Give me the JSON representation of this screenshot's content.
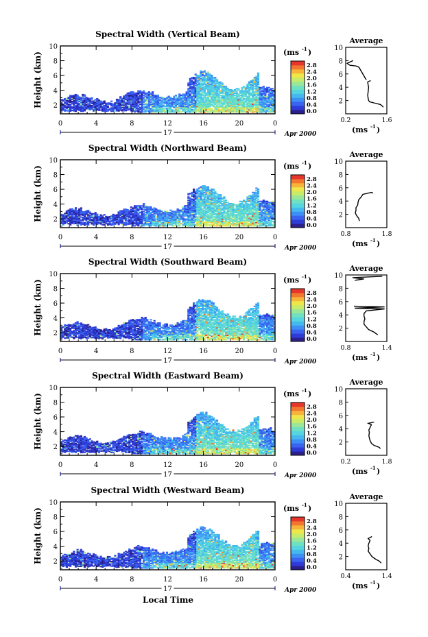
{
  "chart_data": {
    "type": "heatmap",
    "colorbar": {
      "unit_label": "(ms",
      "unit_exp": "-1",
      "unit_close": ")",
      "ticks": [
        "2.8",
        "2.4",
        "2.0",
        "1.6",
        "1.2",
        "0.8",
        "0.4",
        "0.0"
      ],
      "range": [
        0,
        3.0
      ],
      "colors": [
        "#2a1f8c",
        "#2f3bd6",
        "#3a63f0",
        "#3d8ef5",
        "#45b8ee",
        "#55d5e0",
        "#6fe0c0",
        "#9be79a",
        "#c8ec6a",
        "#efe64a",
        "#f7b43a",
        "#f2762e",
        "#e6352a"
      ]
    },
    "x_ticks": [
      "0",
      "4",
      "8",
      "12",
      "16",
      "20",
      "0"
    ],
    "x_range": [
      0,
      24
    ],
    "date_day": "17",
    "date_label": "Apr 2000",
    "xlabel": "Local Time",
    "ylabel": "Height (km)",
    "y_ticks": [
      "2",
      "4",
      "6",
      "8",
      "10"
    ],
    "y_range": [
      0.8,
      10
    ],
    "avg_title": "Average",
    "avg_xlabel": "(ms",
    "avg_xlabel_exp": "-1",
    "panels": [
      {
        "title": "Spectral Width (Vertical Beam)",
        "avg_xticks": [
          "0.2",
          "1.6"
        ],
        "avg_xrange": [
          0.2,
          1.6
        ],
        "avg_profile": [
          [
            1.48,
            1.0
          ],
          [
            1.44,
            1.2
          ],
          [
            1.38,
            1.4
          ],
          [
            1.2,
            1.6
          ],
          [
            1.02,
            1.8
          ],
          [
            0.98,
            2.0
          ],
          [
            0.96,
            2.4
          ],
          [
            0.95,
            2.8
          ],
          [
            0.96,
            3.2
          ],
          [
            0.97,
            3.6
          ],
          [
            0.98,
            4.0
          ],
          [
            0.96,
            4.4
          ],
          [
            0.95,
            4.8
          ],
          [
            1.05,
            5.0
          ],
          [
            0.9,
            5.1
          ],
          [
            0.65,
            7.0
          ],
          [
            0.55,
            7.2
          ],
          [
            0.35,
            7.3
          ],
          [
            0.3,
            7.4
          ],
          [
            0.25,
            7.6
          ],
          [
            0.45,
            8.0
          ]
        ],
        "avg_breaks": [
          14
        ]
      },
      {
        "title": "Spectral Width (Northward Beam)",
        "avg_xticks": [
          "0.8",
          "1.8"
        ],
        "avg_xrange": [
          0.6,
          1.8
        ],
        "avg_profile": [
          [
            1.0,
            1.0
          ],
          [
            0.98,
            1.4
          ],
          [
            0.92,
            1.8
          ],
          [
            0.88,
            2.2
          ],
          [
            0.9,
            2.6
          ],
          [
            0.9,
            3.0
          ],
          [
            0.95,
            3.4
          ],
          [
            0.96,
            3.8
          ],
          [
            0.98,
            4.2
          ],
          [
            1.05,
            4.6
          ],
          [
            1.1,
            5.0
          ],
          [
            1.35,
            5.3
          ],
          [
            1.4,
            5.2
          ]
        ],
        "avg_breaks": []
      },
      {
        "title": "Spectral Width (Southward Beam)",
        "avg_xticks": [
          "0.8",
          "1.4"
        ],
        "avg_xrange": [
          0.6,
          1.5
        ],
        "avg_profile": [
          [
            1.3,
            1.0
          ],
          [
            1.22,
            1.4
          ],
          [
            1.1,
            1.8
          ],
          [
            1.05,
            2.2
          ],
          [
            1.0,
            2.6
          ],
          [
            1.0,
            3.0
          ],
          [
            1.02,
            3.4
          ],
          [
            1.0,
            3.8
          ],
          [
            1.0,
            4.2
          ],
          [
            1.05,
            4.6
          ],
          [
            1.45,
            4.9
          ],
          [
            0.8,
            5.0
          ],
          [
            1.45,
            5.2
          ],
          [
            0.78,
            5.3
          ],
          [
            0.8,
            9.2
          ],
          [
            1.0,
            9.4
          ],
          [
            0.75,
            9.6
          ],
          [
            1.4,
            9.8
          ]
        ],
        "avg_breaks": [
          14
        ]
      },
      {
        "title": "Spectral Width (Eastward Beam)",
        "avg_xticks": [
          "0.2",
          "1.8"
        ],
        "avg_xrange": [
          0.2,
          1.8
        ],
        "avg_profile": [
          [
            1.55,
            1.0
          ],
          [
            1.5,
            1.2
          ],
          [
            1.3,
            1.5
          ],
          [
            1.2,
            1.8
          ],
          [
            1.15,
            2.2
          ],
          [
            1.12,
            2.6
          ],
          [
            1.1,
            3.0
          ],
          [
            1.12,
            3.4
          ],
          [
            1.1,
            3.8
          ],
          [
            1.15,
            4.2
          ],
          [
            1.2,
            4.6
          ],
          [
            1.08,
            4.8
          ],
          [
            1.3,
            5.0
          ]
        ],
        "avg_breaks": []
      },
      {
        "title": "Spectral Width (Westward Beam)",
        "avg_xticks": [
          "0.4",
          "1.4"
        ],
        "avg_xrange": [
          0.4,
          1.5
        ],
        "avg_profile": [
          [
            1.35,
            1.0
          ],
          [
            1.3,
            1.3
          ],
          [
            1.2,
            1.6
          ],
          [
            1.1,
            2.0
          ],
          [
            1.05,
            2.4
          ],
          [
            1.0,
            2.8
          ],
          [
            1.02,
            3.2
          ],
          [
            1.0,
            3.6
          ],
          [
            1.02,
            4.0
          ],
          [
            1.05,
            4.4
          ],
          [
            1.0,
            4.7
          ],
          [
            1.1,
            5.0
          ]
        ],
        "avg_breaks": []
      }
    ]
  }
}
